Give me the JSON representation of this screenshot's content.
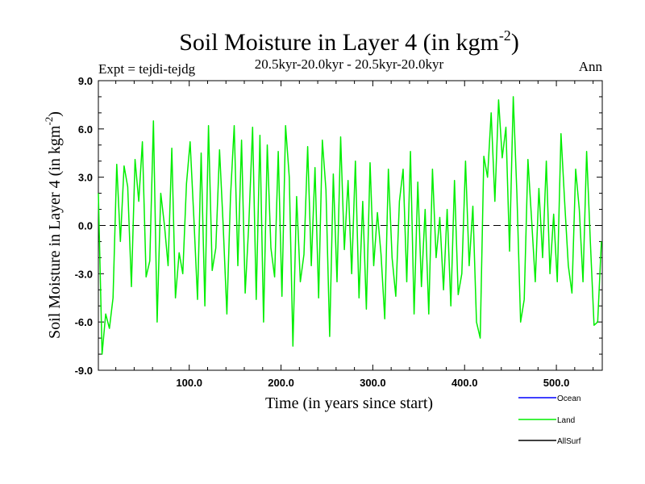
{
  "chart_data": {
    "type": "line",
    "title_main": "Soil Moisture in Layer 4 (in kgm",
    "title_sup": "-2",
    "title_close": ")",
    "subtitle_left": "Expt = tejdi-tejdg",
    "subtitle_center": "20.5kyr-20.0kyr - 20.5kyr-20.0kyr",
    "subtitle_right": "Ann",
    "xlabel": "Time (in years since start)",
    "ylabel_main": "Soil Moisture in Layer 4 (in kgm",
    "ylabel_sup": "-2",
    "ylabel_close": ")",
    "xlim": [
      1,
      550
    ],
    "ylim": [
      -9,
      9
    ],
    "xticks": [
      100,
      200,
      300,
      400,
      500
    ],
    "xtick_labels": [
      "100.0",
      "200.0",
      "300.0",
      "400.0",
      "500.0"
    ],
    "yticks": [
      -9,
      -6,
      -3,
      0,
      3,
      6,
      9
    ],
    "ytick_labels": [
      "-9.0",
      "-6.0",
      "-3.0",
      "0.0",
      "3.0",
      "6.0",
      "9.0"
    ],
    "zero_line": 0,
    "legend": [
      {
        "name": "Ocean",
        "color": "#0000ff"
      },
      {
        "name": "Land",
        "color": "#00ee00"
      },
      {
        "name": "AllSurf",
        "color": "#000000"
      }
    ],
    "series": [
      {
        "name": "Land",
        "color": "#00ee00",
        "x": [
          1,
          5,
          9,
          13,
          17,
          21,
          25,
          29,
          33,
          37,
          41,
          45,
          49,
          53,
          57,
          61,
          65,
          69,
          73,
          77,
          81,
          85,
          89,
          93,
          97,
          101,
          105,
          109,
          113,
          117,
          121,
          125,
          129,
          133,
          137,
          141,
          145,
          149,
          153,
          157,
          161,
          165,
          169,
          173,
          177,
          181,
          185,
          189,
          193,
          197,
          201,
          205,
          209,
          213,
          217,
          221,
          225,
          229,
          233,
          237,
          241,
          245,
          249,
          253,
          257,
          261,
          265,
          269,
          273,
          277,
          281,
          285,
          289,
          293,
          297,
          301,
          305,
          309,
          313,
          317,
          321,
          325,
          329,
          333,
          337,
          341,
          345,
          349,
          353,
          357,
          361,
          365,
          369,
          373,
          377,
          381,
          385,
          389,
          393,
          397,
          401,
          405,
          409,
          413,
          417,
          421,
          425,
          429,
          433,
          437,
          441,
          445,
          449,
          453,
          457,
          461,
          465,
          469,
          473,
          477,
          481,
          485,
          489,
          493,
          497,
          501,
          505,
          509,
          513,
          517,
          521,
          525,
          529,
          533,
          537,
          541,
          545,
          549
        ],
        "y": [
          2.0,
          -8.0,
          -5.5,
          -6.4,
          -4.5,
          3.8,
          -1.0,
          3.7,
          2.4,
          -3.8,
          4.1,
          1.5,
          5.2,
          -3.2,
          -2.2,
          6.5,
          -6.0,
          2.0,
          0.0,
          -2.5,
          4.8,
          -4.5,
          -1.7,
          -3.0,
          2.6,
          5.2,
          0.5,
          -4.6,
          4.5,
          -5.0,
          6.2,
          -2.8,
          -1.4,
          4.7,
          0.0,
          -5.5,
          1.8,
          6.2,
          -2.5,
          5.3,
          -4.2,
          0.2,
          6.1,
          -4.6,
          5.6,
          -6.0,
          5.0,
          -1.4,
          -3.2,
          4.6,
          -4.4,
          6.2,
          3.0,
          -7.5,
          1.8,
          -3.5,
          -1.8,
          4.9,
          -2.5,
          3.6,
          -4.5,
          5.3,
          2.2,
          -6.9,
          3.2,
          -3.5,
          5.5,
          -1.5,
          2.8,
          -3.0,
          4.0,
          -4.5,
          1.5,
          -5.2,
          3.9,
          -2.5,
          0.8,
          -1.8,
          -5.8,
          3.5,
          -2.0,
          -4.4,
          1.5,
          3.5,
          -3.5,
          4.6,
          -5.5,
          2.7,
          -3.8,
          1.0,
          -5.5,
          3.5,
          -2.0,
          0.5,
          -4.0,
          1.0,
          -5.0,
          2.8,
          -4.3,
          -3.0,
          4.0,
          -2.5,
          1.2,
          -6.0,
          -7.0,
          4.3,
          3.0,
          7.0,
          1.5,
          7.8,
          4.2,
          6.1,
          -1.6,
          8.0,
          2.0,
          -6.0,
          -4.6,
          4.1,
          0.4,
          -3.5,
          2.3,
          -2.0,
          4.0,
          -3.0,
          0.7,
          -3.5,
          5.7,
          1.5,
          -2.5,
          -4.2,
          3.5,
          1.0,
          -3.5,
          4.6,
          -1.0,
          -6.2,
          -6.0,
          -1.0
        ]
      }
    ]
  }
}
